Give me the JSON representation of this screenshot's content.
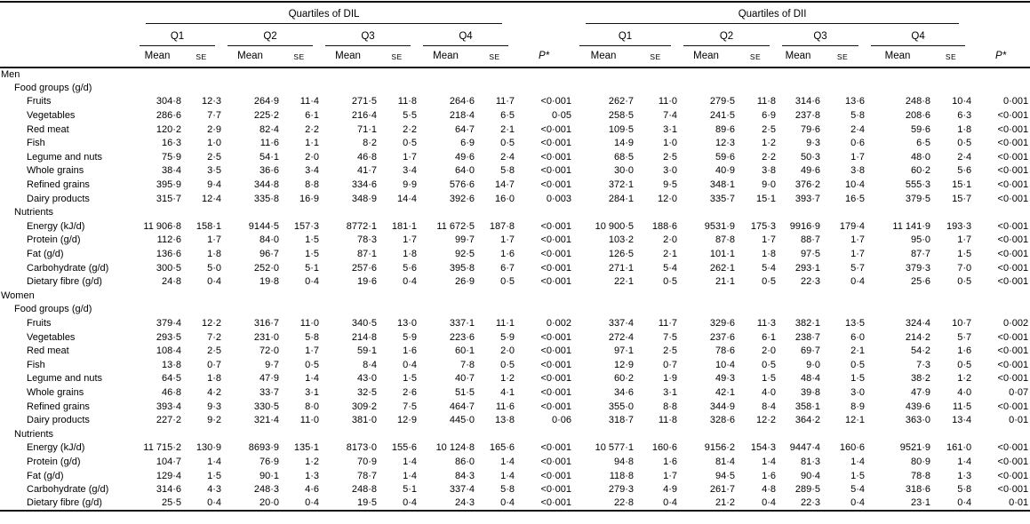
{
  "table": {
    "group_headers": [
      "Quartiles of DIL",
      "Quartiles of DII"
    ],
    "quartiles": [
      "Q1",
      "Q2",
      "Q3",
      "Q4"
    ],
    "stat_headers": [
      "Mean",
      "SE"
    ],
    "p_header": "P*",
    "sections": [
      {
        "label": "Men",
        "subsections": [
          {
            "label": "Food groups (g/d)",
            "rows": [
              {
                "label": "Fruits",
                "dil": [
                  "304·8",
                  "12·3",
                  "264·9",
                  "11·4",
                  "271·5",
                  "11·8",
                  "264·6",
                  "11·7"
                ],
                "dil_p": "<0·001",
                "dii": [
                  "262·7",
                  "11·0",
                  "279·5",
                  "11·8",
                  "314·6",
                  "13·6",
                  "248·8",
                  "10·4"
                ],
                "dii_p": "0·001"
              },
              {
                "label": "Vegetables",
                "dil": [
                  "286·6",
                  "7·7",
                  "225·2",
                  "6·1",
                  "216·4",
                  "5·5",
                  "218·4",
                  "6·5"
                ],
                "dil_p": "0·05",
                "dii": [
                  "258·5",
                  "7·4",
                  "241·5",
                  "6·9",
                  "237·8",
                  "5·8",
                  "208·6",
                  "6·3"
                ],
                "dii_p": "<0·001"
              },
              {
                "label": "Red meat",
                "dil": [
                  "120·2",
                  "2·9",
                  "82·4",
                  "2·2",
                  "71·1",
                  "2·2",
                  "64·7",
                  "2·1"
                ],
                "dil_p": "<0·001",
                "dii": [
                  "109·5",
                  "3·1",
                  "89·6",
                  "2·5",
                  "79·6",
                  "2·4",
                  "59·6",
                  "1·8"
                ],
                "dii_p": "<0·001"
              },
              {
                "label": "Fish",
                "dil": [
                  "16·3",
                  "1·0",
                  "11·6",
                  "1·1",
                  "8·2",
                  "0·5",
                  "6·9",
                  "0·5"
                ],
                "dil_p": "<0·001",
                "dii": [
                  "14·9",
                  "1·0",
                  "12·3",
                  "1·2",
                  "9·3",
                  "0·6",
                  "6·5",
                  "0·5"
                ],
                "dii_p": "<0·001"
              },
              {
                "label": "Legume and nuts",
                "dil": [
                  "75·9",
                  "2·5",
                  "54·1",
                  "2·0",
                  "46·8",
                  "1·7",
                  "49·6",
                  "2·4"
                ],
                "dil_p": "<0·001",
                "dii": [
                  "68·5",
                  "2·5",
                  "59·6",
                  "2·2",
                  "50·3",
                  "1·7",
                  "48·0",
                  "2·4"
                ],
                "dii_p": "<0·001"
              },
              {
                "label": "Whole grains",
                "dil": [
                  "38·4",
                  "3·5",
                  "36·6",
                  "3·4",
                  "41·7",
                  "3·4",
                  "64·0",
                  "5·8"
                ],
                "dil_p": "<0·001",
                "dii": [
                  "30·0",
                  "3·0",
                  "40·9",
                  "3·8",
                  "49·6",
                  "3·8",
                  "60·2",
                  "5·6"
                ],
                "dii_p": "<0·001"
              },
              {
                "label": "Refined grains",
                "dil": [
                  "395·9",
                  "9·4",
                  "344·8",
                  "8·8",
                  "334·6",
                  "9·9",
                  "576·6",
                  "14·7"
                ],
                "dil_p": "<0·001",
                "dii": [
                  "372·1",
                  "9·5",
                  "348·1",
                  "9·0",
                  "376·2",
                  "10·4",
                  "555·3",
                  "15·1"
                ],
                "dii_p": "<0·001"
              },
              {
                "label": "Dairy products",
                "dil": [
                  "315·7",
                  "12·4",
                  "335·8",
                  "16·9",
                  "348·9",
                  "14·4",
                  "392·6",
                  "16·0"
                ],
                "dil_p": "0·003",
                "dii": [
                  "284·1",
                  "12·0",
                  "335·7",
                  "15·1",
                  "393·7",
                  "16·5",
                  "379·5",
                  "15·7"
                ],
                "dii_p": "<0·001"
              }
            ]
          },
          {
            "label": "Nutrients",
            "rows": [
              {
                "label": "Energy (kJ/d)",
                "dil": [
                  "11 906·8",
                  "158·1",
                  "9144·5",
                  "157·3",
                  "8772·1",
                  "181·1",
                  "11 672·5",
                  "187·8"
                ],
                "dil_p": "<0·001",
                "dii": [
                  "10 900·5",
                  "188·6",
                  "9531·9",
                  "175·3",
                  "9916·9",
                  "179·4",
                  "11 141·9",
                  "193·3"
                ],
                "dii_p": "<0·001"
              },
              {
                "label": "Protein (g/d)",
                "dil": [
                  "112·6",
                  "1·7",
                  "84·0",
                  "1·5",
                  "78·3",
                  "1·7",
                  "99·7",
                  "1·7"
                ],
                "dil_p": "<0·001",
                "dii": [
                  "103·2",
                  "2·0",
                  "87·8",
                  "1·7",
                  "88·7",
                  "1·7",
                  "95·0",
                  "1·7"
                ],
                "dii_p": "<0·001"
              },
              {
                "label": "Fat (g/d)",
                "dil": [
                  "136·6",
                  "1·8",
                  "96·7",
                  "1·5",
                  "87·1",
                  "1·8",
                  "92·5",
                  "1·6"
                ],
                "dil_p": "<0·001",
                "dii": [
                  "126·5",
                  "2·1",
                  "101·1",
                  "1·8",
                  "97·5",
                  "1·7",
                  "87·7",
                  "1·5"
                ],
                "dii_p": "<0·001"
              },
              {
                "label": "Carbohydrate (g/d)",
                "dil": [
                  "300·5",
                  "5·0",
                  "252·0",
                  "5·1",
                  "257·6",
                  "5·6",
                  "395·8",
                  "6·7"
                ],
                "dil_p": "<0·001",
                "dii": [
                  "271·1",
                  "5·4",
                  "262·1",
                  "5·4",
                  "293·1",
                  "5·7",
                  "379·3",
                  "7·0"
                ],
                "dii_p": "<0·001"
              },
              {
                "label": "Dietary fibre (g/d)",
                "dil": [
                  "24·8",
                  "0·4",
                  "19·8",
                  "0·4",
                  "19·6",
                  "0·4",
                  "26·9",
                  "0·5"
                ],
                "dil_p": "<0·001",
                "dii": [
                  "22·1",
                  "0·5",
                  "21·1",
                  "0·5",
                  "22·3",
                  "0·4",
                  "25·6",
                  "0·5"
                ],
                "dii_p": "<0·001"
              }
            ]
          }
        ]
      },
      {
        "label": "Women",
        "subsections": [
          {
            "label": "Food groups (g/d)",
            "rows": [
              {
                "label": "Fruits",
                "dil": [
                  "379·4",
                  "12·2",
                  "316·7",
                  "11·0",
                  "340·5",
                  "13·0",
                  "337·1",
                  "11·1"
                ],
                "dil_p": "0·002",
                "dii": [
                  "337·4",
                  "11·7",
                  "329·6",
                  "11·3",
                  "382·1",
                  "13·5",
                  "324·4",
                  "10·7"
                ],
                "dii_p": "0·002"
              },
              {
                "label": "Vegetables",
                "dil": [
                  "293·5",
                  "7·2",
                  "231·0",
                  "5·8",
                  "214·8",
                  "5·9",
                  "223·6",
                  "5·9"
                ],
                "dil_p": "<0·001",
                "dii": [
                  "272·4",
                  "7·5",
                  "237·6",
                  "6·1",
                  "238·7",
                  "6·0",
                  "214·2",
                  "5·7"
                ],
                "dii_p": "<0·001"
              },
              {
                "label": "Red meat",
                "dil": [
                  "108·4",
                  "2·5",
                  "72·0",
                  "1·7",
                  "59·1",
                  "1·6",
                  "60·1",
                  "2·0"
                ],
                "dil_p": "<0·001",
                "dii": [
                  "97·1",
                  "2·5",
                  "78·6",
                  "2·0",
                  "69·7",
                  "2·1",
                  "54·2",
                  "1·6"
                ],
                "dii_p": "<0·001"
              },
              {
                "label": "Fish",
                "dil": [
                  "13·8",
                  "0·7",
                  "9·7",
                  "0·5",
                  "8·4",
                  "0·4",
                  "7·8",
                  "0·5"
                ],
                "dil_p": "<0·001",
                "dii": [
                  "12·9",
                  "0·7",
                  "10·4",
                  "0·5",
                  "9·0",
                  "0·5",
                  "7·3",
                  "0·5"
                ],
                "dii_p": "<0·001"
              },
              {
                "label": "Legume and nuts",
                "dil": [
                  "64·5",
                  "1·8",
                  "47·9",
                  "1·4",
                  "43·0",
                  "1·5",
                  "40·7",
                  "1·2"
                ],
                "dil_p": "<0·001",
                "dii": [
                  "60·2",
                  "1·9",
                  "49·3",
                  "1·5",
                  "48·4",
                  "1·5",
                  "38·2",
                  "1·2"
                ],
                "dii_p": "<0·001"
              },
              {
                "label": "Whole grains",
                "dil": [
                  "46·8",
                  "4·2",
                  "33·7",
                  "3·1",
                  "32·5",
                  "2·6",
                  "51·5",
                  "4·1"
                ],
                "dil_p": "<0·001",
                "dii": [
                  "34·6",
                  "3·1",
                  "42·1",
                  "4·0",
                  "39·8",
                  "3·0",
                  "47·9",
                  "4·0"
                ],
                "dii_p": "0·07"
              },
              {
                "label": "Refined grains",
                "dil": [
                  "393·4",
                  "9·3",
                  "330·5",
                  "8·0",
                  "309·2",
                  "7·5",
                  "464·7",
                  "11·6"
                ],
                "dil_p": "<0·001",
                "dii": [
                  "355·0",
                  "8·8",
                  "344·9",
                  "8·4",
                  "358·1",
                  "8·9",
                  "439·6",
                  "11·5"
                ],
                "dii_p": "<0·001"
              },
              {
                "label": "Dairy products",
                "dil": [
                  "227·2",
                  "9·2",
                  "321·4",
                  "11·0",
                  "381·0",
                  "12·9",
                  "445·0",
                  "13·8"
                ],
                "dil_p": "0·06",
                "dii": [
                  "318·7",
                  "11·8",
                  "328·6",
                  "12·2",
                  "364·2",
                  "12·1",
                  "363·0",
                  "13·4"
                ],
                "dii_p": "0·01"
              }
            ]
          },
          {
            "label": "Nutrients",
            "rows": [
              {
                "label": "Energy (kJ/d)",
                "dil": [
                  "11 715·2",
                  "130·9",
                  "8693·9",
                  "135·1",
                  "8173·0",
                  "155·6",
                  "10 124·8",
                  "165·6"
                ],
                "dil_p": "<0·001",
                "dii": [
                  "10 577·1",
                  "160·6",
                  "9156·2",
                  "154·3",
                  "9447·4",
                  "160·6",
                  "9521·9",
                  "161·0"
                ],
                "dii_p": "<0·001"
              },
              {
                "label": "Protein (g/d)",
                "dil": [
                  "104·7",
                  "1·4",
                  "76·9",
                  "1·2",
                  "70·9",
                  "1·4",
                  "86·0",
                  "1·4"
                ],
                "dil_p": "<0·001",
                "dii": [
                  "94·8",
                  "1·6",
                  "81·4",
                  "1·4",
                  "81·3",
                  "1·4",
                  "80·9",
                  "1·4"
                ],
                "dii_p": "<0·001"
              },
              {
                "label": "Fat (g/d)",
                "dil": [
                  "129·4",
                  "1·5",
                  "90·1",
                  "1·3",
                  "78·7",
                  "1·4",
                  "84·3",
                  "1·4"
                ],
                "dil_p": "<0·001",
                "dii": [
                  "118·8",
                  "1·7",
                  "94·5",
                  "1·6",
                  "90·4",
                  "1·5",
                  "78·8",
                  "1·3"
                ],
                "dii_p": "<0·001"
              },
              {
                "label": "Carbohydrate (g/d)",
                "dil": [
                  "314·6",
                  "4·3",
                  "248·3",
                  "4·6",
                  "248·8",
                  "5·1",
                  "337·4",
                  "5·8"
                ],
                "dil_p": "<0·001",
                "dii": [
                  "279·3",
                  "4·9",
                  "261·7",
                  "4·8",
                  "289·5",
                  "5·4",
                  "318·6",
                  "5·8"
                ],
                "dii_p": "<0·001"
              },
              {
                "label": "Dietary fibre (g/d)",
                "dil": [
                  "25·5",
                  "0·4",
                  "20·0",
                  "0·4",
                  "19·5",
                  "0·4",
                  "24·3",
                  "0·4"
                ],
                "dil_p": "<0·001",
                "dii": [
                  "22·8",
                  "0·4",
                  "21·2",
                  "0·4",
                  "22·3",
                  "0·4",
                  "23·1",
                  "0·4"
                ],
                "dii_p": "0·01"
              }
            ]
          }
        ]
      }
    ]
  }
}
